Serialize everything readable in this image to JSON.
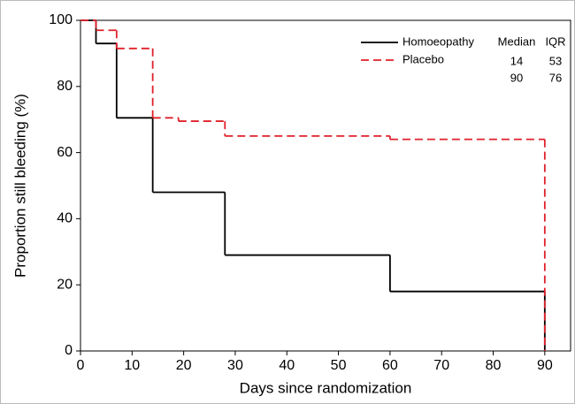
{
  "chart_data": {
    "type": "step",
    "x_label": "Days since randomization",
    "y_label": "Proportion still bleeding (%)",
    "xlim": [
      0,
      95
    ],
    "ylim": [
      0,
      100
    ],
    "xticks": [
      0,
      10,
      20,
      30,
      40,
      50,
      60,
      70,
      80,
      90
    ],
    "yticks": [
      0,
      20,
      40,
      60,
      80,
      100
    ],
    "series": [
      {
        "name": "Homoeopathy",
        "color": "#000000",
        "dashed": false,
        "x": [
          0,
          3,
          7,
          14,
          28,
          60,
          90
        ],
        "values": [
          100,
          93,
          70.5,
          48,
          29,
          18,
          0
        ]
      },
      {
        "name": "Placebo",
        "color": "#e0202a",
        "dashed": true,
        "x": [
          0,
          3,
          7,
          14,
          19,
          28,
          60,
          90
        ],
        "values": [
          100,
          97,
          91.5,
          70.5,
          69.5,
          65,
          64,
          0
        ]
      }
    ],
    "legend_table": {
      "header": [
        "Median",
        "IQR"
      ],
      "rows": [
        [
          14,
          53
        ],
        [
          90,
          76
        ]
      ]
    }
  }
}
